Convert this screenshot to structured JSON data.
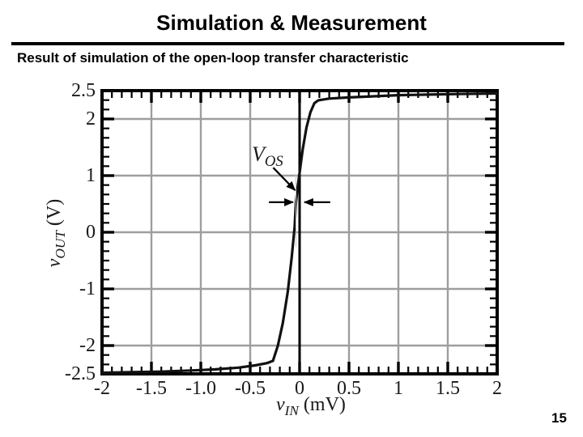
{
  "header": {
    "title": "Simulation & Measurement",
    "subtitle": "Result of simulation of the open-loop transfer characteristic"
  },
  "footer": {
    "page_number": "15"
  },
  "chart_data": {
    "type": "line",
    "title": "",
    "xlabel": {
      "var": "v",
      "sub": "IN",
      "unit": "(mV)"
    },
    "ylabel": {
      "var": "v",
      "sub": "OUT",
      "unit": "(V)"
    },
    "xlim": [
      -2,
      2
    ],
    "ylim": [
      -2.5,
      2.5
    ],
    "x_unit": "mV",
    "y_unit": "V",
    "xticks": [
      {
        "value": -2,
        "label": "-2"
      },
      {
        "value": -1.5,
        "label": "-1.5"
      },
      {
        "value": -1,
        "label": "-1.0"
      },
      {
        "value": -0.5,
        "label": "-0.5"
      },
      {
        "value": 0,
        "label": "0"
      },
      {
        "value": 0.5,
        "label": "0.5"
      },
      {
        "value": 1,
        "label": "1"
      },
      {
        "value": 1.5,
        "label": "1.5"
      },
      {
        "value": 2,
        "label": "2"
      }
    ],
    "yticks": [
      {
        "value": 2.5,
        "label": "2.5"
      },
      {
        "value": 2,
        "label": "2"
      },
      {
        "value": 1,
        "label": "1"
      },
      {
        "value": 0,
        "label": "0"
      },
      {
        "value": -1,
        "label": "-1"
      },
      {
        "value": -2,
        "label": "-2"
      },
      {
        "value": -2.5,
        "label": "-2.5"
      }
    ],
    "x_minor_step": 0.1,
    "y_minor_step": 0.1666667,
    "grid": {
      "x_values": [
        -1.5,
        -1,
        -0.5,
        0.5,
        1,
        1.5
      ],
      "y_values": [
        -2,
        -1,
        0,
        1,
        2
      ],
      "color": "#9e9e9e"
    },
    "axis_line_x": 0,
    "series": [
      {
        "name": "open-loop transfer characteristic",
        "color": "#111111",
        "points": [
          [
            -2.0,
            -2.48
          ],
          [
            -1.7,
            -2.47
          ],
          [
            -1.4,
            -2.46
          ],
          [
            -1.1,
            -2.44
          ],
          [
            -0.85,
            -2.42
          ],
          [
            -0.62,
            -2.39
          ],
          [
            -0.45,
            -2.35
          ],
          [
            -0.33,
            -2.31
          ],
          [
            -0.27,
            -2.27
          ],
          [
            -0.22,
            -2.0
          ],
          [
            -0.17,
            -1.6
          ],
          [
            -0.12,
            -1.05
          ],
          [
            -0.08,
            -0.45
          ],
          [
            -0.05,
            0.1
          ],
          [
            -0.037,
            0.53
          ],
          [
            -0.02,
            0.8
          ],
          [
            0.0,
            1.05
          ],
          [
            0.03,
            1.45
          ],
          [
            0.07,
            1.85
          ],
          [
            0.11,
            2.12
          ],
          [
            0.15,
            2.28
          ],
          [
            0.19,
            2.33
          ],
          [
            0.3,
            2.36
          ],
          [
            0.5,
            2.38
          ],
          [
            0.75,
            2.4
          ],
          [
            1.0,
            2.42
          ],
          [
            1.3,
            2.43
          ],
          [
            1.6,
            2.44
          ],
          [
            2.0,
            2.45
          ]
        ]
      }
    ],
    "annotation": {
      "label_var": "V",
      "label_sub": "OS",
      "meaning": "input offset voltage between curve crossing and vIN = 0 axis",
      "leader_from": {
        "x_mV": -0.267,
        "y_V": 1.14
      },
      "leader_to": {
        "x_mV": -0.045,
        "y_V": 0.74
      },
      "arrows_y_V": 0.53,
      "left_arrow": {
        "tail_mV": -0.31,
        "tip_mV": -0.065
      },
      "right_arrow": {
        "tail_mV": 0.31,
        "tip_mV": 0.048
      },
      "ref_line": {
        "x_mV": -0.037,
        "top_V": 1.03,
        "bottom_V": -0.26,
        "color": "#c8c8c8"
      }
    }
  }
}
